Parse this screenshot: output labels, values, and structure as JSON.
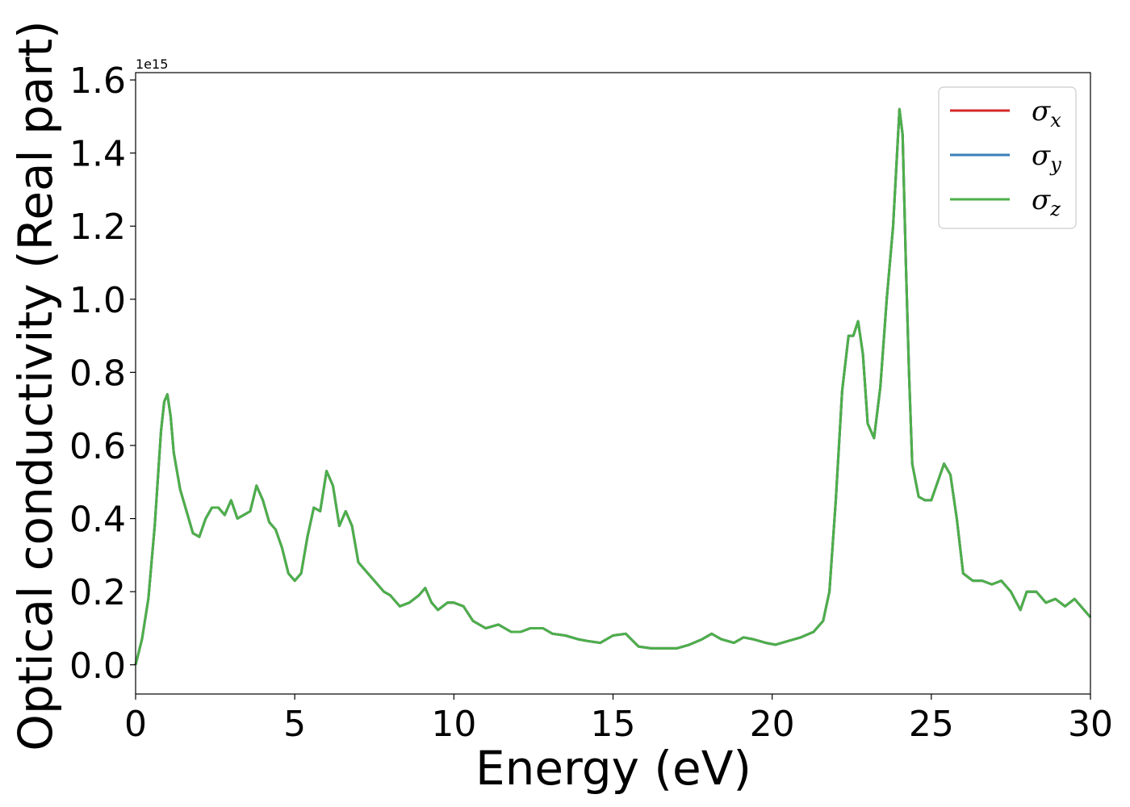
{
  "chart_data": {
    "type": "line",
    "title": "",
    "xlabel": "Energy (eV)",
    "ylabel": "Optical conductivity (Real part)",
    "y_offset_label": "1e15",
    "xlim": [
      0,
      30
    ],
    "ylim": [
      -0.08,
      1.62
    ],
    "xticks": [
      0,
      5,
      10,
      15,
      20,
      25,
      30
    ],
    "xtick_labels": [
      "0",
      "5",
      "10",
      "15",
      "20",
      "25",
      "30"
    ],
    "yticks": [
      0.0,
      0.2,
      0.4,
      0.6,
      0.8,
      1.0,
      1.2,
      1.4,
      1.6
    ],
    "ytick_labels": [
      "0.0",
      "0.2",
      "0.4",
      "0.6",
      "0.8",
      "1.0",
      "1.2",
      "1.4",
      "1.6"
    ],
    "grid": false,
    "legend_position": "top-right",
    "x": [
      0,
      0.2,
      0.4,
      0.6,
      0.8,
      0.9,
      1.0,
      1.1,
      1.2,
      1.4,
      1.6,
      1.8,
      2.0,
      2.2,
      2.4,
      2.6,
      2.8,
      3.0,
      3.2,
      3.4,
      3.6,
      3.8,
      4.0,
      4.2,
      4.4,
      4.6,
      4.8,
      5.0,
      5.2,
      5.4,
      5.6,
      5.8,
      6.0,
      6.2,
      6.4,
      6.6,
      6.8,
      7.0,
      7.2,
      7.5,
      7.8,
      8.0,
      8.3,
      8.6,
      8.9,
      9.1,
      9.3,
      9.5,
      9.8,
      10.0,
      10.3,
      10.6,
      11.0,
      11.4,
      11.8,
      12.1,
      12.4,
      12.8,
      13.1,
      13.5,
      13.9,
      14.2,
      14.6,
      15.0,
      15.4,
      15.8,
      16.2,
      16.6,
      17.0,
      17.4,
      17.8,
      18.1,
      18.4,
      18.8,
      19.1,
      19.4,
      19.8,
      20.1,
      20.5,
      20.9,
      21.3,
      21.6,
      21.8,
      22.0,
      22.2,
      22.4,
      22.55,
      22.7,
      22.85,
      23.0,
      23.2,
      23.4,
      23.6,
      23.8,
      24.0,
      24.1,
      24.2,
      24.3,
      24.4,
      24.6,
      24.8,
      25.0,
      25.2,
      25.4,
      25.6,
      25.8,
      26.0,
      26.3,
      26.6,
      26.9,
      27.2,
      27.5,
      27.8,
      28.0,
      28.3,
      28.6,
      28.9,
      29.2,
      29.5,
      29.8,
      30.0
    ],
    "series": [
      {
        "name": "x",
        "color": "#d62728",
        "values": [
          0.0,
          0.07,
          0.18,
          0.38,
          0.64,
          0.72,
          0.74,
          0.68,
          0.58,
          0.48,
          0.42,
          0.36,
          0.35,
          0.4,
          0.43,
          0.43,
          0.41,
          0.45,
          0.4,
          0.41,
          0.42,
          0.49,
          0.45,
          0.39,
          0.37,
          0.32,
          0.25,
          0.23,
          0.25,
          0.35,
          0.43,
          0.42,
          0.53,
          0.49,
          0.38,
          0.42,
          0.38,
          0.28,
          0.26,
          0.23,
          0.2,
          0.19,
          0.16,
          0.17,
          0.19,
          0.21,
          0.17,
          0.15,
          0.17,
          0.17,
          0.16,
          0.12,
          0.1,
          0.11,
          0.09,
          0.09,
          0.1,
          0.1,
          0.085,
          0.08,
          0.07,
          0.065,
          0.06,
          0.08,
          0.085,
          0.05,
          0.045,
          0.045,
          0.045,
          0.055,
          0.07,
          0.085,
          0.07,
          0.06,
          0.075,
          0.07,
          0.06,
          0.055,
          0.065,
          0.075,
          0.09,
          0.12,
          0.2,
          0.45,
          0.75,
          0.9,
          0.9,
          0.94,
          0.85,
          0.66,
          0.62,
          0.76,
          1.0,
          1.2,
          1.52,
          1.45,
          1.1,
          0.8,
          0.55,
          0.46,
          0.45,
          0.45,
          0.5,
          0.55,
          0.52,
          0.4,
          0.25,
          0.23,
          0.23,
          0.22,
          0.23,
          0.2,
          0.15,
          0.2,
          0.2,
          0.17,
          0.18,
          0.16,
          0.18,
          0.15,
          0.13
        ]
      },
      {
        "name": "y",
        "color": "#377eb8",
        "values": [
          0.0,
          0.07,
          0.18,
          0.38,
          0.64,
          0.72,
          0.74,
          0.68,
          0.58,
          0.48,
          0.42,
          0.36,
          0.35,
          0.4,
          0.43,
          0.43,
          0.41,
          0.45,
          0.4,
          0.41,
          0.42,
          0.49,
          0.45,
          0.39,
          0.37,
          0.32,
          0.25,
          0.23,
          0.25,
          0.35,
          0.43,
          0.42,
          0.53,
          0.49,
          0.38,
          0.42,
          0.38,
          0.28,
          0.26,
          0.23,
          0.2,
          0.19,
          0.16,
          0.17,
          0.19,
          0.21,
          0.17,
          0.15,
          0.17,
          0.17,
          0.16,
          0.12,
          0.1,
          0.11,
          0.09,
          0.09,
          0.1,
          0.1,
          0.085,
          0.08,
          0.07,
          0.065,
          0.06,
          0.08,
          0.085,
          0.05,
          0.045,
          0.045,
          0.045,
          0.055,
          0.07,
          0.085,
          0.07,
          0.06,
          0.075,
          0.07,
          0.06,
          0.055,
          0.065,
          0.075,
          0.09,
          0.12,
          0.2,
          0.45,
          0.75,
          0.9,
          0.9,
          0.94,
          0.85,
          0.66,
          0.62,
          0.76,
          1.0,
          1.2,
          1.52,
          1.45,
          1.1,
          0.8,
          0.55,
          0.46,
          0.45,
          0.45,
          0.5,
          0.55,
          0.52,
          0.4,
          0.25,
          0.23,
          0.23,
          0.22,
          0.23,
          0.2,
          0.15,
          0.2,
          0.2,
          0.17,
          0.18,
          0.16,
          0.18,
          0.15,
          0.13
        ]
      },
      {
        "name": "z",
        "color": "#4daf4a",
        "values": [
          0.0,
          0.07,
          0.18,
          0.38,
          0.64,
          0.72,
          0.74,
          0.68,
          0.58,
          0.48,
          0.42,
          0.36,
          0.35,
          0.4,
          0.43,
          0.43,
          0.41,
          0.45,
          0.4,
          0.41,
          0.42,
          0.49,
          0.45,
          0.39,
          0.37,
          0.32,
          0.25,
          0.23,
          0.25,
          0.35,
          0.43,
          0.42,
          0.53,
          0.49,
          0.38,
          0.42,
          0.38,
          0.28,
          0.26,
          0.23,
          0.2,
          0.19,
          0.16,
          0.17,
          0.19,
          0.21,
          0.17,
          0.15,
          0.17,
          0.17,
          0.16,
          0.12,
          0.1,
          0.11,
          0.09,
          0.09,
          0.1,
          0.1,
          0.085,
          0.08,
          0.07,
          0.065,
          0.06,
          0.08,
          0.085,
          0.05,
          0.045,
          0.045,
          0.045,
          0.055,
          0.07,
          0.085,
          0.07,
          0.06,
          0.075,
          0.07,
          0.06,
          0.055,
          0.065,
          0.075,
          0.09,
          0.12,
          0.2,
          0.45,
          0.75,
          0.9,
          0.9,
          0.94,
          0.85,
          0.66,
          0.62,
          0.76,
          1.0,
          1.2,
          1.52,
          1.45,
          1.1,
          0.8,
          0.55,
          0.46,
          0.45,
          0.45,
          0.5,
          0.55,
          0.52,
          0.4,
          0.25,
          0.23,
          0.23,
          0.22,
          0.23,
          0.2,
          0.15,
          0.2,
          0.2,
          0.17,
          0.18,
          0.16,
          0.18,
          0.15,
          0.13
        ]
      }
    ],
    "legend": {
      "symbol": "σ",
      "entries": [
        "x",
        "y",
        "z"
      ]
    }
  }
}
